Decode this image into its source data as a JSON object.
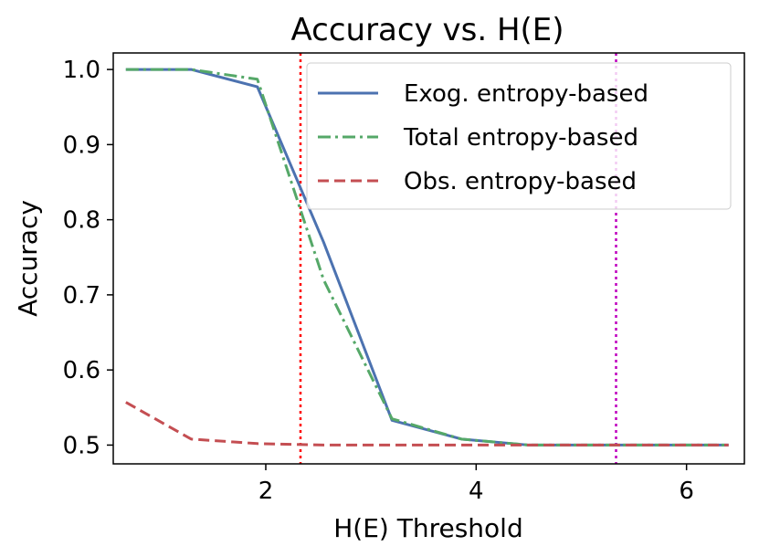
{
  "chart_data": {
    "type": "line",
    "title": "Accuracy vs. H(E)",
    "xlabel": "H(E) Threshold",
    "ylabel": "Accuracy",
    "xlim": [
      0.55,
      6.55
    ],
    "ylim": [
      0.475,
      1.022
    ],
    "x_ticks": [
      2,
      4,
      6
    ],
    "x_tick_labels": [
      "2",
      "4",
      "6"
    ],
    "y_ticks": [
      0.5,
      0.6,
      0.7,
      0.8,
      0.9,
      1.0
    ],
    "y_tick_labels": [
      "0.5",
      "0.6",
      "0.7",
      "0.8",
      "0.9",
      "1.0"
    ],
    "grid": false,
    "legend_position": "top-right",
    "series": [
      {
        "name": "Exog. entropy-based",
        "style": "solid",
        "color": "#4c72b0",
        "x": [
          0.67,
          1.29,
          1.92,
          2.55,
          3.2,
          3.86,
          4.5,
          5.13,
          5.77,
          6.4
        ],
        "y": [
          1.0,
          1.0,
          0.977,
          0.77,
          0.533,
          0.508,
          0.5,
          0.5,
          0.5,
          0.5
        ]
      },
      {
        "name": "Total entropy-based",
        "style": "dashdot",
        "color": "#55a868",
        "x": [
          0.67,
          1.29,
          1.92,
          2.55,
          3.2,
          3.86,
          4.5,
          5.13,
          5.77,
          6.4
        ],
        "y": [
          1.0,
          1.0,
          0.987,
          0.72,
          0.535,
          0.508,
          0.5,
          0.5,
          0.5,
          0.5
        ]
      },
      {
        "name": "Obs. entropy-based",
        "style": "dashed",
        "color": "#c44e52",
        "x": [
          0.67,
          1.29,
          1.92,
          2.55,
          3.2,
          3.86,
          4.5,
          5.13,
          5.77,
          6.4
        ],
        "y": [
          0.557,
          0.508,
          0.502,
          0.5,
          0.5,
          0.5,
          0.5,
          0.5,
          0.5,
          0.5
        ]
      }
    ],
    "vlines": [
      {
        "x": 2.33,
        "color": "#ff0000",
        "style": "dotted"
      },
      {
        "x": 5.33,
        "color": "#bf00bf",
        "style": "dotted"
      }
    ]
  }
}
